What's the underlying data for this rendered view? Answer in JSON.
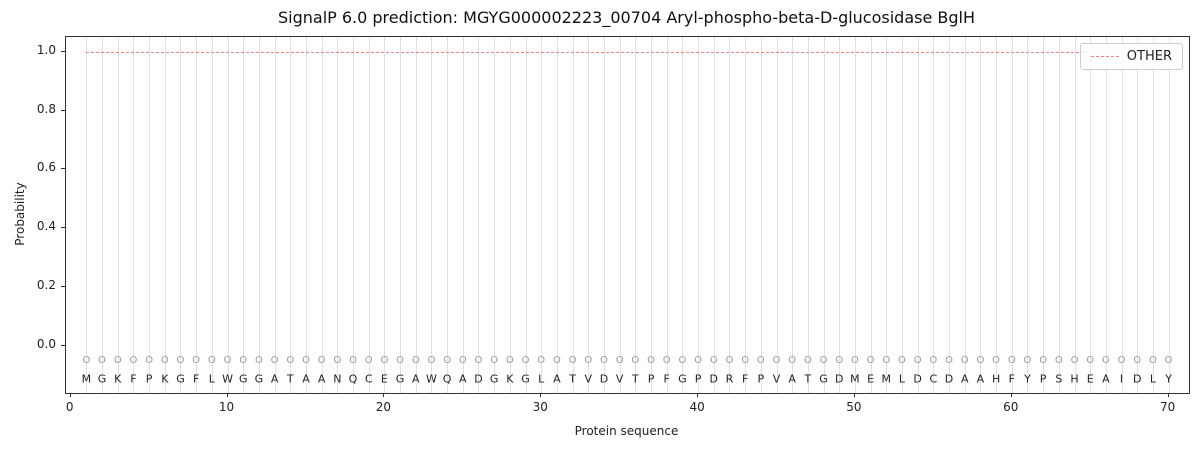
{
  "chart_data": {
    "type": "line",
    "title": "SignalP 6.0 prediction: MGYG000002223_00704 Aryl-phospho-beta-D-glucosidase BglH",
    "xlabel": "Protein sequence",
    "ylabel": "Probability",
    "xlim": [
      -0.3,
      71.3
    ],
    "ylim": [
      -0.16,
      1.05
    ],
    "x_tick_labels": [
      "0",
      "10",
      "20",
      "30",
      "40",
      "50",
      "60",
      "70"
    ],
    "x_tick_values": [
      0,
      10,
      20,
      30,
      40,
      50,
      60,
      70
    ],
    "y_tick_labels": [
      "0.0",
      "0.2",
      "0.4",
      "0.6",
      "0.8",
      "1.0"
    ],
    "y_tick_values": [
      0.0,
      0.2,
      0.4,
      0.6,
      0.8,
      1.0
    ],
    "grid": "vertical line at each residue position",
    "legend": {
      "position": "upper right",
      "entries": [
        {
          "label": "OTHER",
          "color": "#f87f7f",
          "style": "dashed"
        }
      ]
    },
    "series": [
      {
        "name": "OTHER",
        "style": "dashed",
        "color": "#f87f7f",
        "x_start": 1,
        "x_end": 70,
        "y_constant": 1.0
      }
    ],
    "sequence": "MGKFPKGFLWGGATAANQCEGAWQADGKGLATVDVTPFGPDRFPVATGDMEMLDCDAAHFYPSHEAIDLY",
    "marker_label": "O",
    "marker_y": -0.05,
    "sequence_y": -0.112
  }
}
